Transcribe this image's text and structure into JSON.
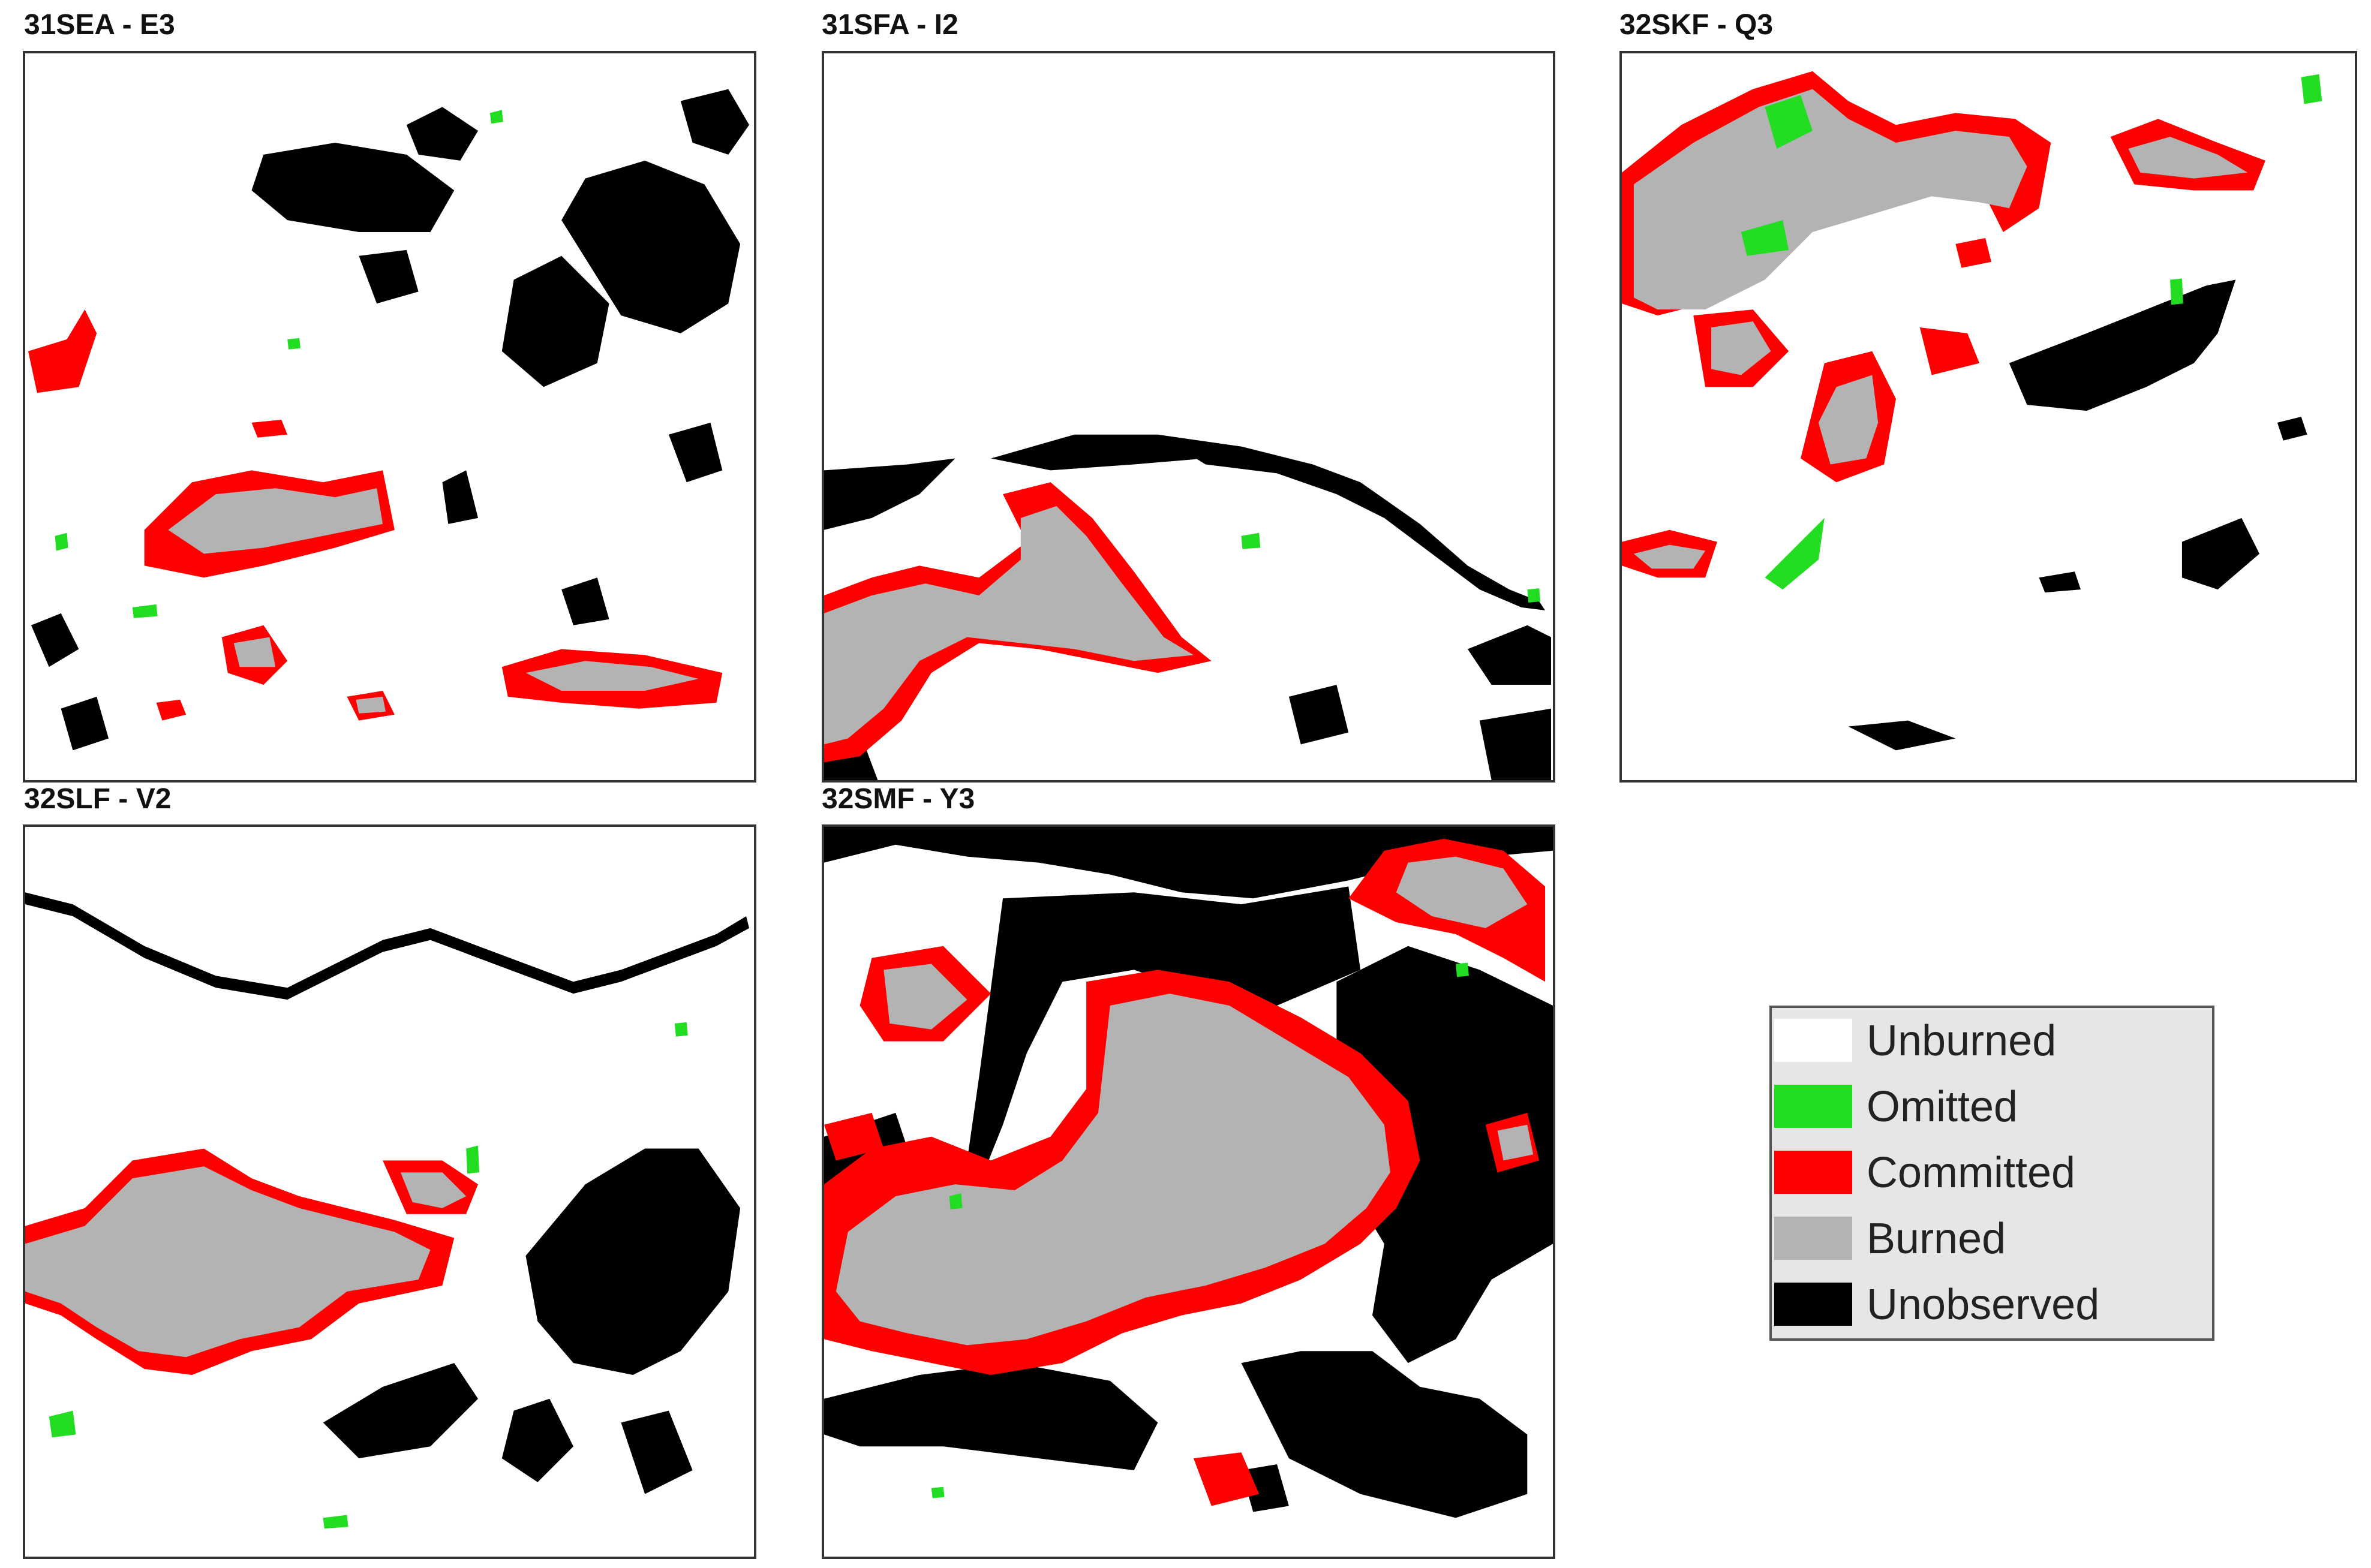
{
  "colors": {
    "unburned": "#ffffff",
    "omitted": "#22dd22",
    "committed": "#ff0000",
    "burned": "#b3b3b3",
    "unobserved": "#000000"
  },
  "panels": [
    {
      "id": "p1",
      "title": "31SEA - E3"
    },
    {
      "id": "p2",
      "title": "31SFA - I2"
    },
    {
      "id": "p3",
      "title": "32SKF - Q3"
    },
    {
      "id": "p4",
      "title": "32SLF - V2"
    },
    {
      "id": "p5",
      "title": "32SMF - Y3"
    }
  ],
  "legend": {
    "items": [
      {
        "label": "Unburned",
        "color": "#ffffff",
        "icon": "white-swatch"
      },
      {
        "label": "Omitted",
        "color": "#22dd22",
        "icon": "green-swatch"
      },
      {
        "label": "Committed",
        "color": "#ff0000",
        "icon": "red-swatch"
      },
      {
        "label": "Burned",
        "color": "#b3b3b3",
        "icon": "gray-swatch"
      },
      {
        "label": "Unobserved",
        "color": "#000000",
        "icon": "black-swatch"
      }
    ]
  }
}
